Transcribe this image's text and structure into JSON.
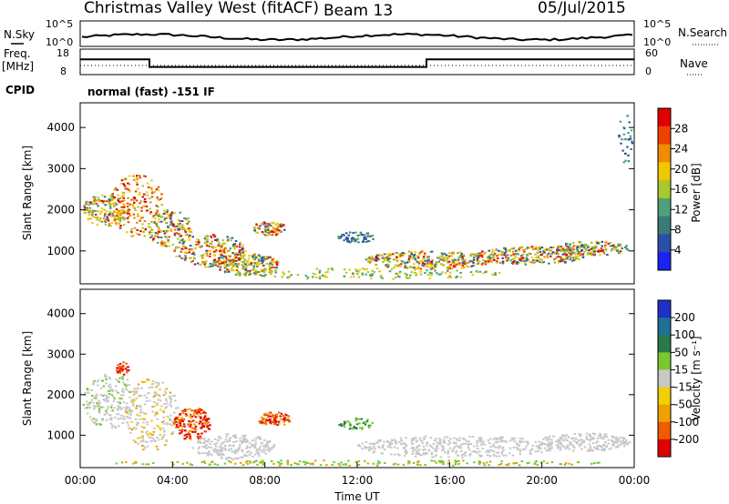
{
  "header": {
    "title": "Christmas Valley West (fitACF)",
    "beam": "Beam 13",
    "date": "05/Jul/2015"
  },
  "colors": {
    "power": [
      "#1a23f0",
      "#2a4fa8",
      "#3c7a78",
      "#4fa078",
      "#a8c830",
      "#f0c800",
      "#f08c00",
      "#f04000",
      "#e00000"
    ],
    "velocity": [
      "#2030c8",
      "#207098",
      "#2a7a4a",
      "#78c832",
      "#c8c8c8",
      "#f0d000",
      "#f0a000",
      "#f05a00",
      "#e00000"
    ]
  },
  "chart_data": [
    {
      "type": "line",
      "name": "noise-panel",
      "left_label": "N.Sky",
      "right_label": "N.Search",
      "left_ticks": [
        "10^5",
        "10^0"
      ],
      "right_ticks": [
        "10^5",
        "10^0"
      ]
    },
    {
      "type": "line",
      "name": "freq-panel",
      "left_label": "Freq. [MHz]",
      "right_label": "Nave",
      "left_ticks": [
        "18",
        "8"
      ],
      "right_ticks": [
        "60",
        "0"
      ],
      "cpid_label": "CPID",
      "cpid_text": "normal (fast) -151 IF",
      "freq_steps_hours": [
        [
          0,
          3,
          14.0
        ],
        [
          3,
          15,
          11.0
        ],
        [
          15,
          24,
          14.0
        ]
      ]
    },
    {
      "type": "heatmap",
      "name": "power",
      "ylabel": "Slant Range [km]",
      "yticks": [
        "4000",
        "3000",
        "2000",
        "1000"
      ],
      "ylim": [
        200,
        4600
      ],
      "colorbar_label": "Power [dB]",
      "colorbar_ticks": [
        "28",
        "24",
        "20",
        "16",
        "12",
        "8",
        "4"
      ]
    },
    {
      "type": "heatmap",
      "name": "velocity",
      "ylabel": "Slant Range [km]",
      "yticks": [
        "4000",
        "3000",
        "2000",
        "1000"
      ],
      "ylim": [
        200,
        4600
      ],
      "colorbar_label": "Velocity [m s⁻¹]",
      "colorbar_ticks": [
        "200",
        "100",
        "50",
        "15",
        "-15",
        "-50",
        "-100",
        "-200"
      ],
      "xlabel": "Time UT",
      "xticks": [
        "00:00",
        "04:00",
        "08:00",
        "12:00",
        "16:00",
        "20:00",
        "00:00"
      ],
      "xlim_hours": [
        0,
        24
      ]
    }
  ]
}
